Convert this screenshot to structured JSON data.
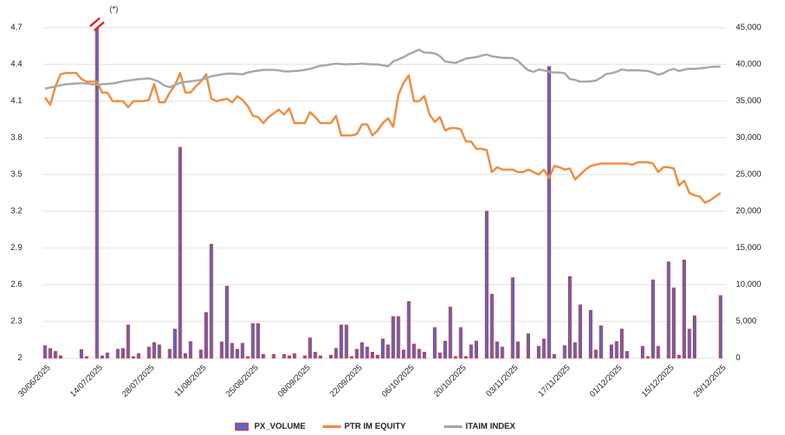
{
  "chart_data": {
    "type": "combo",
    "annotation": "(*)",
    "categories": [
      "30/06/2025",
      null,
      null,
      null,
      null,
      null,
      null,
      null,
      null,
      null,
      "14/07/2025",
      null,
      null,
      null,
      null,
      null,
      null,
      null,
      null,
      null,
      "28/07/2025",
      null,
      null,
      null,
      null,
      null,
      null,
      null,
      null,
      null,
      "11/08/2025",
      null,
      null,
      null,
      null,
      null,
      null,
      null,
      null,
      null,
      "25/08/2025",
      null,
      null,
      null,
      null,
      null,
      null,
      null,
      null,
      null,
      "08/09/2025",
      null,
      null,
      null,
      null,
      null,
      null,
      null,
      null,
      null,
      "22/09/2025",
      null,
      null,
      null,
      null,
      null,
      null,
      null,
      null,
      null,
      "06/10/2025",
      null,
      null,
      null,
      null,
      null,
      null,
      null,
      null,
      null,
      "20/10/2025",
      null,
      null,
      null,
      null,
      null,
      null,
      null,
      null,
      null,
      "03/11/2025",
      null,
      null,
      null,
      null,
      null,
      null,
      null,
      null,
      null,
      "17/11/2025",
      null,
      null,
      null,
      null,
      null,
      null,
      null,
      null,
      null,
      "01/12/2025",
      null,
      null,
      null,
      null,
      null,
      null,
      null,
      null,
      null,
      "15/12/2025",
      null,
      null,
      null,
      null,
      null,
      null,
      null,
      null,
      null,
      "29/12/2025"
    ],
    "ylim": [
      2,
      4.7
    ],
    "yticks": [
      2,
      2.3,
      2.6,
      2.9,
      3.2,
      3.5,
      3.8,
      4.1,
      4.4,
      4.7
    ],
    "y2lim": [
      0,
      45000
    ],
    "y2ticks": [
      0,
      {
        "value": 5000,
        "label": "5,000"
      },
      {
        "value": 10000,
        "label": "10,000"
      },
      {
        "value": 15000,
        "label": "15,000"
      },
      {
        "value": 20000,
        "label": "20,000"
      },
      {
        "value": 25000,
        "label": "25,000"
      },
      {
        "value": 30000,
        "label": "30,000"
      },
      {
        "value": 35000,
        "label": "35,000"
      },
      {
        "value": 40000,
        "label": "40,000"
      },
      {
        "value": 45000,
        "label": "45,000"
      }
    ],
    "grid": true,
    "legend": "bottom",
    "series": [
      {
        "name": "PX_VOLUME",
        "type": "bar",
        "axis": "y2",
        "color": "#4a6fc8",
        "edgecolor": "#e0202a",
        "values": [
          1700,
          1300,
          900,
          300,
          0,
          0,
          0,
          1150,
          200,
          0,
          45000,
          300,
          700,
          0,
          1200,
          1300,
          4500,
          200,
          600,
          0,
          1500,
          2100,
          1800,
          0,
          1200,
          3950,
          28700,
          600,
          2250,
          0,
          1100,
          6200,
          15500,
          0,
          2200,
          9800,
          2000,
          1200,
          2000,
          200,
          4700,
          4700,
          500,
          0,
          500,
          0,
          500,
          300,
          600,
          0,
          300,
          2750,
          800,
          300,
          0,
          400,
          1300,
          4500,
          4500,
          200,
          1200,
          2100,
          1500,
          800,
          400,
          2600,
          1800,
          5650,
          5650,
          1100,
          7700,
          1900,
          1200,
          800,
          0,
          4150,
          700,
          2300,
          6950,
          200,
          4150,
          200,
          1800,
          2300,
          0,
          20000,
          8700,
          2200,
          1500,
          0,
          10950,
          2200,
          0,
          3300,
          0,
          1600,
          2600,
          39700,
          500,
          0,
          1700,
          11100,
          2100,
          7250,
          0,
          6500,
          1100,
          4400,
          0,
          1800,
          2250,
          3950,
          900,
          0,
          0,
          1600,
          200,
          10650,
          1600,
          0,
          13100,
          9550,
          400,
          13350,
          3950,
          5750,
          0,
          0,
          0,
          0,
          8500
        ]
      },
      {
        "name": "PTR IM EQUITY",
        "type": "line",
        "axis": "y",
        "color": "#f08a3c",
        "values": [
          4.13,
          4.07,
          4.22,
          4.32,
          4.33,
          4.33,
          4.33,
          4.28,
          4.26,
          4.26,
          4.26,
          4.17,
          4.17,
          4.1,
          4.1,
          4.1,
          4.05,
          4.1,
          4.1,
          4.1,
          4.11,
          4.24,
          4.09,
          4.09,
          4.17,
          4.23,
          4.33,
          4.17,
          4.17,
          4.22,
          4.26,
          4.32,
          4.12,
          4.1,
          4.11,
          4.12,
          4.09,
          4.14,
          4.11,
          4.06,
          3.98,
          3.97,
          3.92,
          3.97,
          4.0,
          4.03,
          3.99,
          4.04,
          3.92,
          3.92,
          3.92,
          4.01,
          3.97,
          3.92,
          3.92,
          3.92,
          3.98,
          3.82,
          3.82,
          3.82,
          3.83,
          3.91,
          3.91,
          3.82,
          3.86,
          3.92,
          3.96,
          3.89,
          4.15,
          4.25,
          4.31,
          4.1,
          4.1,
          4.14,
          3.99,
          3.93,
          3.97,
          3.86,
          3.88,
          3.88,
          3.87,
          3.77,
          3.77,
          3.71,
          3.71,
          3.7,
          3.52,
          3.56,
          3.54,
          3.54,
          3.54,
          3.52,
          3.52,
          3.54,
          3.52,
          3.5,
          3.54,
          3.47,
          3.57,
          3.56,
          3.54,
          3.55,
          3.46,
          3.5,
          3.54,
          3.57,
          3.58,
          3.59,
          3.59,
          3.59,
          3.59,
          3.59,
          3.59,
          3.58,
          3.6,
          3.6,
          3.6,
          3.59,
          3.52,
          3.56,
          3.56,
          3.55,
          3.41,
          3.45,
          3.35,
          3.33,
          3.32,
          3.27,
          3.29,
          3.32,
          3.35
        ]
      },
      {
        "name": "ITAIM INDEX",
        "type": "line",
        "axis": "y2",
        "color": "#a6a6a6",
        "values": [
          36700,
          36850,
          37000,
          37150,
          37300,
          37350,
          37400,
          37450,
          37400,
          37300,
          37250,
          37300,
          37350,
          37400,
          37550,
          37700,
          37800,
          37900,
          38000,
          38050,
          38100,
          37900,
          37600,
          37100,
          36900,
          37200,
          37500,
          37600,
          37700,
          37800,
          37900,
          38100,
          38400,
          38500,
          38650,
          38750,
          38750,
          38700,
          38650,
          38900,
          39050,
          39150,
          39250,
          39250,
          39250,
          39200,
          39050,
          39050,
          39100,
          39150,
          39250,
          39400,
          39600,
          39800,
          39900,
          40000,
          40100,
          40050,
          40000,
          40050,
          40050,
          40100,
          40050,
          40000,
          40000,
          39900,
          39750,
          40400,
          40700,
          41000,
          41400,
          41700,
          42000,
          41600,
          41600,
          41500,
          41100,
          40400,
          40300,
          40200,
          40500,
          40800,
          40900,
          41000,
          41200,
          41350,
          41100,
          41000,
          40900,
          40900,
          40850,
          40500,
          39800,
          39200,
          39000,
          39300,
          39200,
          39000,
          38900,
          38900,
          38800,
          38000,
          37900,
          37650,
          37650,
          37700,
          37800,
          38200,
          38700,
          38800,
          39000,
          39300,
          39200,
          39200,
          39200,
          39150,
          39100,
          38900,
          38600,
          38800,
          39200,
          39400,
          39100,
          39300,
          39400,
          39400,
          39450,
          39550,
          39650,
          39700,
          39700
        ]
      }
    ]
  }
}
